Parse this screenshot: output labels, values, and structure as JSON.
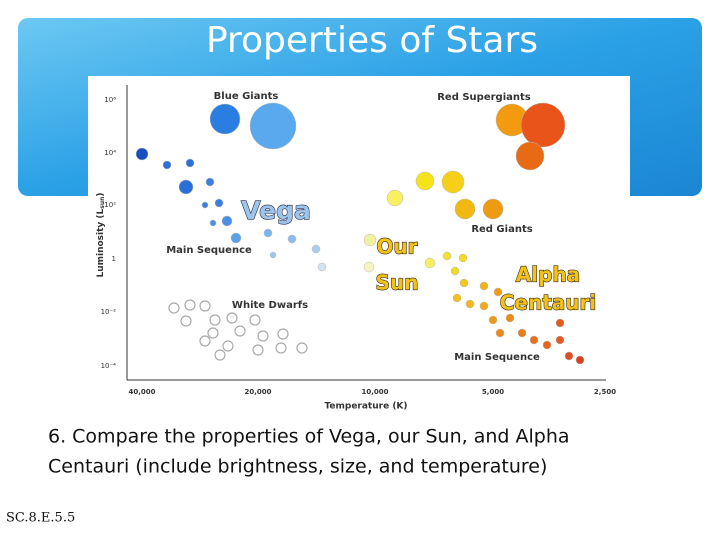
{
  "slide": {
    "title": "Properties of Stars",
    "diagram": {
      "region_labels": [
        "Blue Giants",
        "Red Supergiants",
        "Red Giants",
        "Main Sequence",
        "White Dwarfs",
        "Main Sequence"
      ],
      "y_axis_title": {
        "main": "Luminosity (L",
        "sub": "sun",
        "end": ")"
      },
      "x_axis_title": "Temperature (K)",
      "y_ticks": [
        "10⁶",
        "10⁴",
        "10²",
        "1",
        "10⁻²",
        "10⁻⁴"
      ],
      "x_ticks": [
        "40,000",
        "20,000",
        "10,000",
        "5,000",
        "2,500"
      ],
      "overlays": [
        {
          "lines": [
            "Vega"
          ]
        },
        {
          "lines": [
            "Our",
            "Sun"
          ]
        },
        {
          "lines": [
            "Alpha",
            "Centauri"
          ]
        }
      ]
    },
    "question": [
      "6. Compare the properties of Vega, our Sun, and Alpha",
      "Centauri (include brightness, size, and temperature)"
    ],
    "code": "SC.8.E.5.5"
  }
}
